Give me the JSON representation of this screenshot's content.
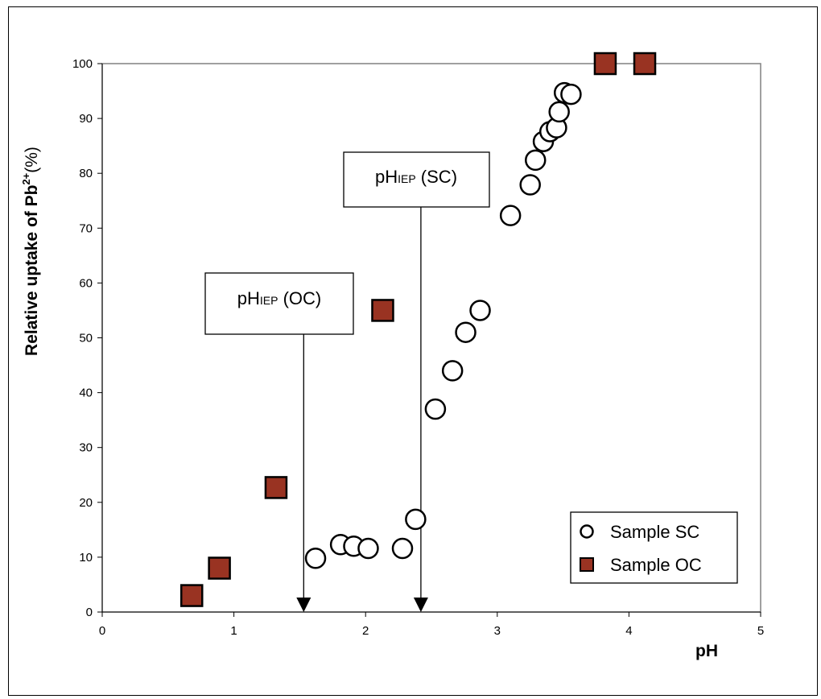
{
  "chart_data": {
    "type": "scatter",
    "xlabel": "pH",
    "ylabel": "Relative uptake of Pb",
    "ylabel_sup": "2+",
    "ylabel_suffix": "(%)",
    "xlim": [
      0,
      5
    ],
    "ylim": [
      0,
      100
    ],
    "x_ticks": [
      0,
      1,
      2,
      3,
      4,
      5
    ],
    "y_ticks": [
      0,
      10,
      20,
      30,
      40,
      50,
      60,
      70,
      80,
      90,
      100
    ],
    "grid": false,
    "legend_position": "bottom-right",
    "series": [
      {
        "name": "Sample SC",
        "marker": "circle-open",
        "color": "#000000",
        "points": [
          [
            1.62,
            9.8
          ],
          [
            1.81,
            12.3
          ],
          [
            1.91,
            12.0
          ],
          [
            2.02,
            11.6
          ],
          [
            2.28,
            11.6
          ],
          [
            2.38,
            16.9
          ],
          [
            2.53,
            37.0
          ],
          [
            2.66,
            44.0
          ],
          [
            2.76,
            51.0
          ],
          [
            2.87,
            55.0
          ],
          [
            3.1,
            72.3
          ],
          [
            3.25,
            77.9
          ],
          [
            3.29,
            82.4
          ],
          [
            3.35,
            85.8
          ],
          [
            3.4,
            87.6
          ],
          [
            3.45,
            88.3
          ],
          [
            3.47,
            91.2
          ],
          [
            3.51,
            94.7
          ],
          [
            3.56,
            94.4
          ]
        ]
      },
      {
        "name": "Sample OC",
        "marker": "square-filled",
        "color": "#993322",
        "points": [
          [
            0.68,
            3.0
          ],
          [
            0.89,
            8.0
          ],
          [
            1.32,
            22.7
          ],
          [
            2.13,
            55.0
          ],
          [
            3.82,
            100.0
          ],
          [
            4.12,
            100.0
          ]
        ]
      }
    ],
    "annotations": [
      {
        "id": "oc",
        "main": "pH",
        "sub": "IEP",
        "rest": " (OC)",
        "arrow_x": 1.53
      },
      {
        "id": "sc",
        "main": "pH",
        "sub": "IEP",
        "rest": " (SC)",
        "arrow_x": 2.42
      }
    ]
  }
}
